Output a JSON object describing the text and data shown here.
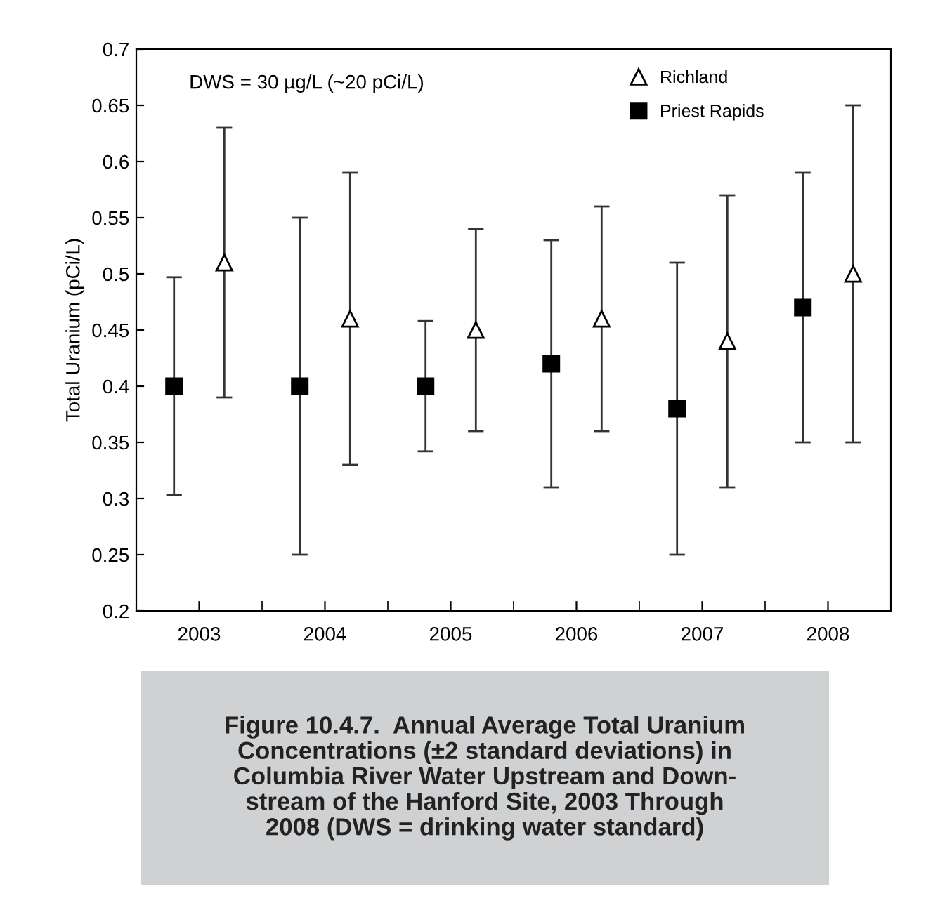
{
  "chart_data": {
    "type": "scatter",
    "ylabel": "Total Uranium (pCi/L)",
    "categories": [
      "2003",
      "2004",
      "2005",
      "2006",
      "2007",
      "2008"
    ],
    "series": [
      {
        "name": "Richland",
        "color": "#000000",
        "marker": "triangle",
        "values": [
          0.51,
          0.46,
          0.45,
          0.46,
          0.44,
          0.5
        ],
        "errors": [
          [
            0.39,
            0.63
          ],
          [
            0.33,
            0.59
          ],
          [
            0.36,
            0.54
          ],
          [
            0.36,
            0.56
          ],
          [
            0.31,
            0.57
          ],
          [
            0.35,
            0.65
          ]
        ]
      },
      {
        "name": "Priest Rapids",
        "color": "#000000",
        "marker": "square",
        "values": [
          0.4,
          0.4,
          0.4,
          0.42,
          0.38,
          0.47
        ],
        "errors": [
          [
            0.303,
            0.497
          ],
          [
            0.25,
            0.55
          ],
          [
            0.342,
            0.458
          ],
          [
            0.31,
            0.53
          ],
          [
            0.25,
            0.51
          ],
          [
            0.35,
            0.59
          ]
        ]
      }
    ],
    "ylim": [
      0.2,
      0.7
    ],
    "yticks": [
      0.2,
      0.25,
      0.3,
      0.35,
      0.4,
      0.45,
      0.5,
      0.55,
      0.6,
      0.65,
      0.7
    ],
    "legend": "top right",
    "grid": false,
    "annotations": [
      "DWS = 30 µg/L (~20 pCi/L)",
      "Figure 10.4.7.  Annual Average Total Uranium\nConcentrations (±2 standard deviations) in\nColumbia River Water Upstream and Down-\nstream of the Hanford Site, 2003 Through\n2008 (DWS = drinking water standard)"
    ]
  }
}
